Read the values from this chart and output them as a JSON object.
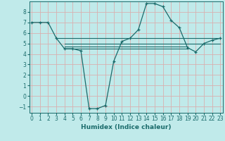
{
  "x_main": [
    0,
    1,
    2,
    3,
    4,
    5,
    6,
    7,
    8,
    9,
    10,
    11,
    12,
    13,
    14,
    15,
    16,
    17,
    18,
    19,
    20,
    21,
    22,
    23
  ],
  "y_main": [
    7.0,
    7.0,
    7.0,
    5.5,
    4.5,
    4.5,
    4.3,
    -1.2,
    -1.2,
    -0.9,
    3.3,
    5.2,
    5.5,
    6.3,
    8.8,
    8.8,
    8.5,
    7.2,
    6.5,
    4.6,
    4.2,
    5.0,
    5.3,
    5.5
  ],
  "flat_lines": [
    {
      "x": [
        3,
        23
      ],
      "y": [
        5.5,
        5.5
      ]
    },
    {
      "x": [
        4,
        23
      ],
      "y": [
        5.0,
        5.0
      ]
    },
    {
      "x": [
        4,
        19
      ],
      "y": [
        4.7,
        4.7
      ]
    },
    {
      "x": [
        4,
        19
      ],
      "y": [
        4.5,
        4.5
      ]
    }
  ],
  "color": "#1a6b6b",
  "bg_color": "#c0eaea",
  "grid_color": "#d8b0b0",
  "xlabel": "Humidex (Indice chaleur)",
  "xticks": [
    0,
    1,
    2,
    3,
    4,
    5,
    6,
    7,
    8,
    9,
    10,
    11,
    12,
    13,
    14,
    15,
    16,
    17,
    18,
    19,
    20,
    21,
    22,
    23
  ],
  "yticks": [
    -1,
    0,
    1,
    2,
    3,
    4,
    5,
    6,
    7,
    8
  ],
  "xlim": [
    -0.3,
    23.3
  ],
  "ylim": [
    -1.6,
    9.0
  ],
  "label_fontsize": 6.5,
  "tick_fontsize": 5.5
}
